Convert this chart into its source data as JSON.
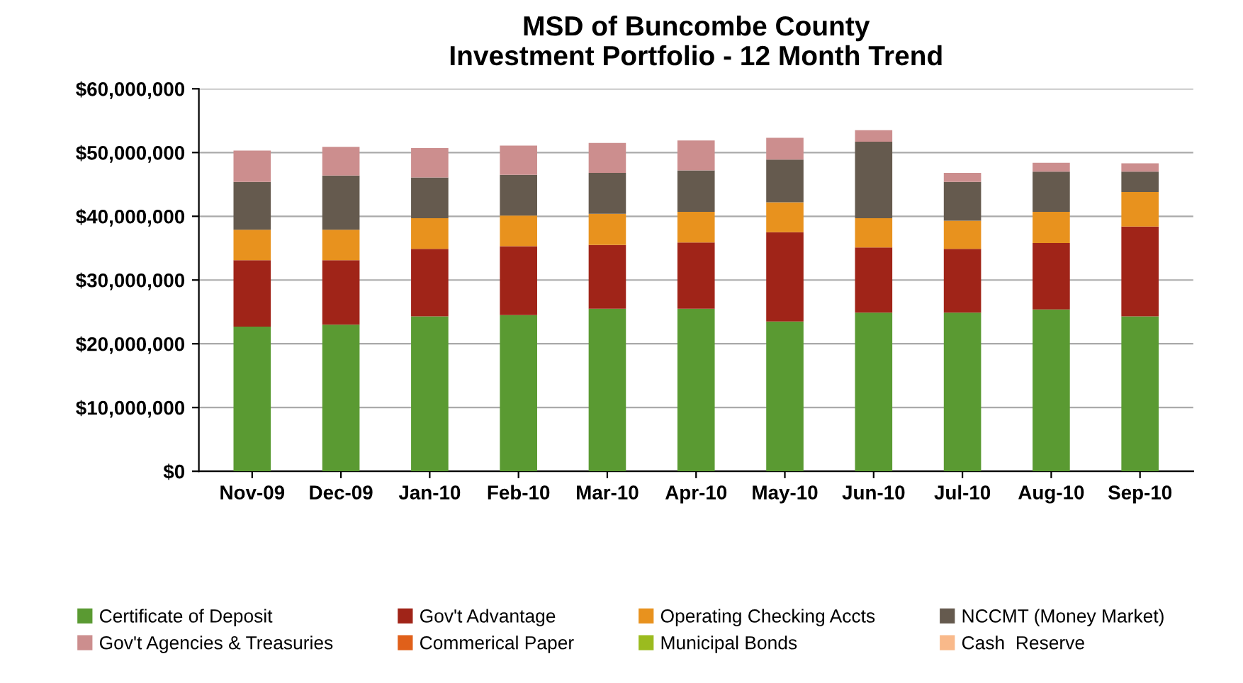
{
  "chart_data": {
    "type": "bar",
    "title": "MSD of Buncombe County\nInvestment Portfolio - 12 Month Trend",
    "stacked": true,
    "categories": [
      "Nov-09",
      "Dec-09",
      "Jan-10",
      "Feb-10",
      "Mar-10",
      "Apr-10",
      "May-10",
      "Jun-10",
      "Jul-10",
      "Aug-10",
      "Sep-10"
    ],
    "series": [
      {
        "name": "Certificate of Deposit",
        "color": "#5a9a32",
        "values": [
          22700000,
          23000000,
          24300000,
          24500000,
          25500000,
          25500000,
          23500000,
          24900000,
          24900000,
          25400000,
          24300000
        ]
      },
      {
        "name": "Gov't Advantage",
        "color": "#a02418",
        "values": [
          10400000,
          10100000,
          10600000,
          10800000,
          10000000,
          10400000,
          14000000,
          10200000,
          10000000,
          10400000,
          14100000
        ]
      },
      {
        "name": "Operating Checking Accts",
        "color": "#e8921e",
        "values": [
          4800000,
          4800000,
          4800000,
          4800000,
          4900000,
          4800000,
          4700000,
          4600000,
          4400000,
          4900000,
          5400000
        ]
      },
      {
        "name": "NCCMT (Money Market)",
        "color": "#655a4e",
        "values": [
          7500000,
          8500000,
          6400000,
          6400000,
          6400000,
          6500000,
          6700000,
          12000000,
          6100000,
          6300000,
          3200000
        ]
      },
      {
        "name": "Gov't Agencies & Treasuries",
        "color": "#cc8e8e",
        "values": [
          4900000,
          4500000,
          4600000,
          4600000,
          4700000,
          4700000,
          3400000,
          1800000,
          1400000,
          1400000,
          1300000
        ]
      },
      {
        "name": "Commerical Paper",
        "color": "#e0601a",
        "values": [
          0,
          0,
          0,
          0,
          0,
          0,
          0,
          0,
          0,
          0,
          0
        ]
      },
      {
        "name": "Municipal Bonds",
        "color": "#9bbb1f",
        "values": [
          0,
          0,
          0,
          0,
          0,
          0,
          0,
          0,
          0,
          0,
          0
        ]
      },
      {
        "name": "Cash  Reserve",
        "color": "#f9b98a",
        "values": [
          0,
          0,
          0,
          0,
          0,
          0,
          0,
          0,
          0,
          0,
          0
        ]
      }
    ],
    "ylim": [
      0,
      60000000
    ],
    "yticks": [
      {
        "value": 0,
        "label": "$0"
      },
      {
        "value": 10000000,
        "label": "$10,000,000"
      },
      {
        "value": 20000000,
        "label": "$20,000,000"
      },
      {
        "value": 30000000,
        "label": "$30,000,000"
      },
      {
        "value": 40000000,
        "label": "$40,000,000"
      },
      {
        "value": 50000000,
        "label": "$50,000,000"
      },
      {
        "value": 60000000,
        "label": "$60,000,000"
      }
    ],
    "grid": "y",
    "legend": "bottom"
  }
}
